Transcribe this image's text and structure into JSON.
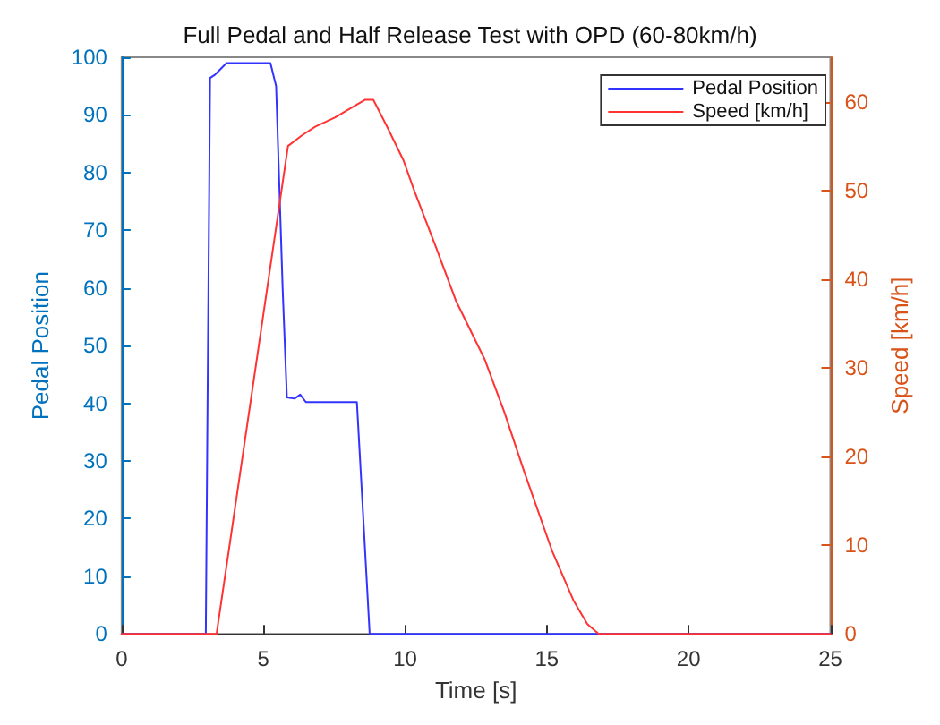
{
  "chart_data": {
    "type": "line",
    "title": "Full Pedal and Half Release Test with OPD (60-80km/h)",
    "xlabel": "Time [s]",
    "ylabel": "Pedal Position",
    "y2label": "Speed [km/h]",
    "xlim": [
      0,
      25
    ],
    "xticks": [
      0,
      5,
      10,
      15,
      20,
      25
    ],
    "ylim": [
      0,
      100
    ],
    "yticks": [
      0,
      10,
      20,
      30,
      40,
      50,
      60,
      70,
      80,
      90,
      100
    ],
    "y2lim": [
      0,
      65
    ],
    "y2ticks": [
      0,
      10,
      20,
      30,
      40,
      50,
      60
    ],
    "legend": "top right",
    "grid": false,
    "marker": "none",
    "line_style": "solid",
    "series": [
      {
        "name": "Pedal Position",
        "color": "#3333ff",
        "x": [
          0,
          2.97,
          3.12,
          3.3,
          3.7,
          5.25,
          5.45,
          5.68,
          5.83,
          6.1,
          6.3,
          6.5,
          8.3,
          8.75,
          25
        ],
        "values": [
          0,
          0,
          96.4,
          97,
          99,
          99,
          95,
          60,
          41,
          40.8,
          41.5,
          40.2,
          40.2,
          0,
          0
        ]
      },
      {
        "name": "Speed [km/h]",
        "color": "#ff3333",
        "axis": "y2",
        "x": [
          0,
          3.35,
          5.0,
          5.87,
          6.36,
          6.84,
          7.52,
          8.0,
          8.58,
          8.88,
          9.36,
          9.94,
          10.33,
          11.1,
          11.8,
          12.8,
          13.5,
          14.2,
          15.18,
          15.95,
          16.43,
          16.83,
          25
        ],
        "values": [
          0,
          0,
          36,
          55,
          56.2,
          57.2,
          58.2,
          59.1,
          60.2,
          60.2,
          57.2,
          53.4,
          49.9,
          43.5,
          37.5,
          31,
          25,
          18.3,
          9.4,
          3.7,
          1.1,
          0,
          0
        ]
      }
    ]
  }
}
